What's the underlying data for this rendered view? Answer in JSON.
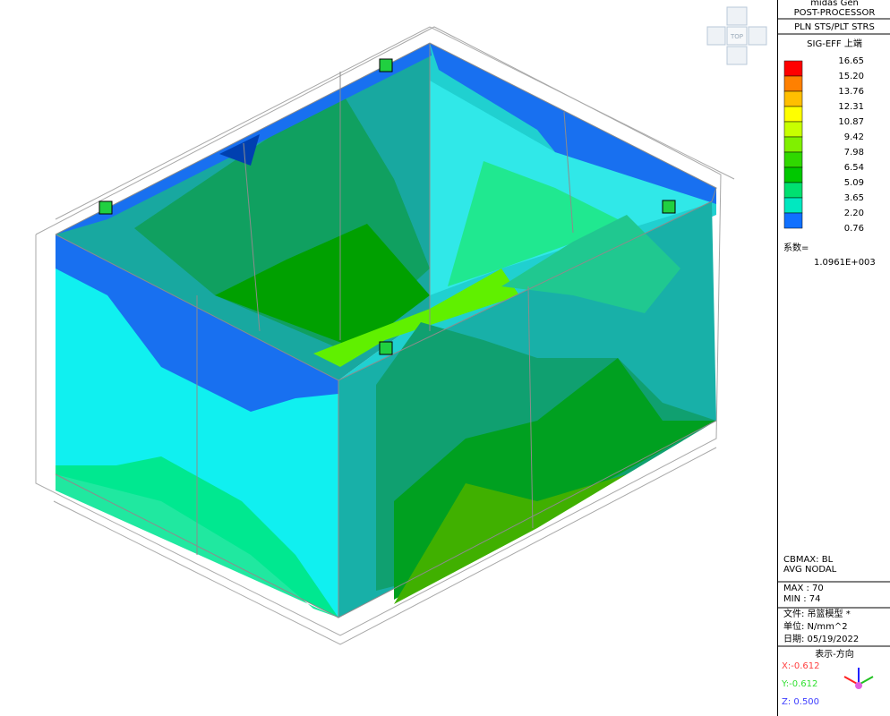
{
  "header": {
    "app": "midas Gen",
    "mode": "POST-PROCESSOR",
    "result": "PLN STS/PLT STRS",
    "component": "SIG-EFF 上端"
  },
  "legend": {
    "labels": [
      "16.65",
      "15.20",
      "13.76",
      "12.31",
      "10.87",
      "9.42",
      "7.98",
      "6.54",
      "5.09",
      "3.65",
      "2.20",
      "0.76"
    ],
    "colors": [
      "#ff0000",
      "#ff8000",
      "#ffbf00",
      "#ffff00",
      "#c8ff00",
      "#80f000",
      "#30d800",
      "#00c800",
      "#00e070",
      "#00e8c0",
      "#1070ff"
    ]
  },
  "factor_label": "系数=",
  "factor": "1.0961E+003",
  "info": {
    "cbmax": "CBMAX: BL",
    "avg": "AVG NODAL",
    "max": "MAX : 70",
    "min": "MIN : 74",
    "file": "文件: 吊篮模型 *",
    "unit": "单位: N/mm^2",
    "date": "日期: 05/19/2022",
    "view": "表示-方向",
    "x": "X:-0.612",
    "y": "Y:-0.612",
    "z": "Z: 0.500"
  },
  "view_cube": "TOP"
}
